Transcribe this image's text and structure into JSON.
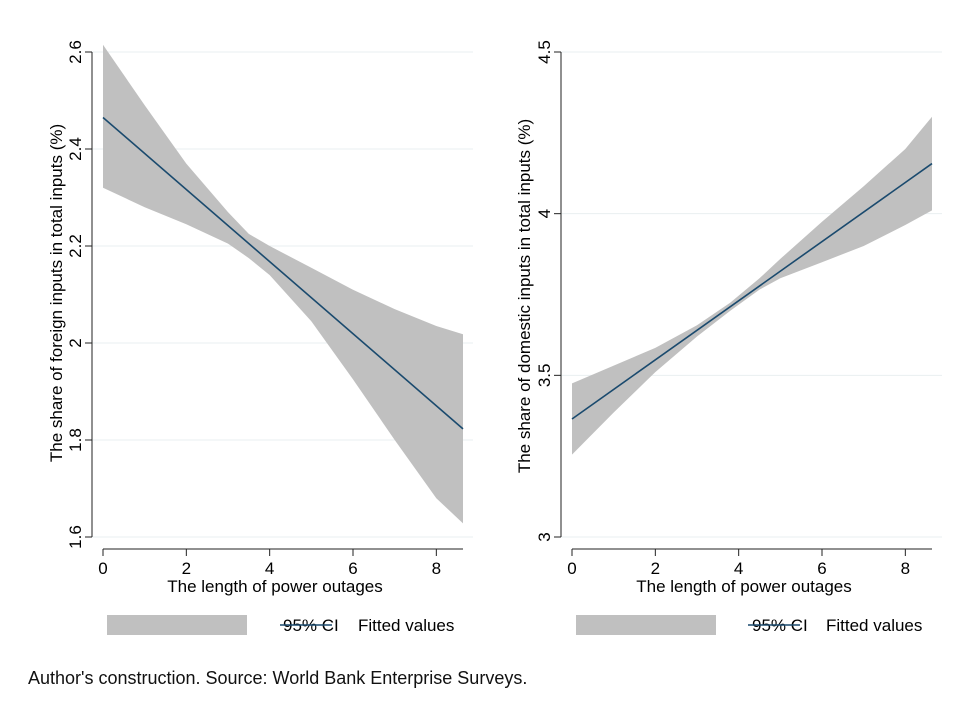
{
  "footnote": "Author's construction. Source: World Bank Enterprise Surveys.",
  "colors": {
    "ci_band": "#c0c0c0",
    "fit_line": "#1a4a6e",
    "grid": "#e9eff1",
    "axis": "#222222"
  },
  "chart_data": [
    {
      "type": "line",
      "title": "",
      "xlabel": "The length of power outages",
      "ylabel": "The share of foreign inputs in total inputs (%)",
      "xlim": [
        0,
        8.64
      ],
      "ylim": [
        1.6,
        2.6
      ],
      "xticks": [
        0,
        2,
        4,
        6,
        8
      ],
      "yticks": [
        1.6,
        1.8,
        2,
        2.2,
        2.4,
        2.6
      ],
      "ytick_labels": [
        "1.6",
        "1.8",
        "2",
        "2.2",
        "2.4",
        "2.6"
      ],
      "xtick_labels": [
        "0",
        "2",
        "4",
        "6",
        "8"
      ],
      "grid": true,
      "legend_position": "bottom",
      "legend": [
        "95% CI",
        "Fitted values"
      ],
      "series": [
        {
          "name": "Fitted values",
          "x": [
            0,
            8.64
          ],
          "y": [
            2.465,
            1.823
          ]
        },
        {
          "name": "95% CI",
          "x": [
            0,
            1,
            2,
            3,
            3.5,
            4,
            5,
            6,
            7,
            8,
            8.64
          ],
          "upper": [
            2.615,
            2.49,
            2.37,
            2.27,
            2.225,
            2.2,
            2.155,
            2.11,
            2.07,
            2.035,
            2.018
          ],
          "lower": [
            2.32,
            2.28,
            2.245,
            2.205,
            2.175,
            2.14,
            2.045,
            1.925,
            1.8,
            1.68,
            1.628
          ]
        }
      ]
    },
    {
      "type": "line",
      "title": "",
      "xlabel": "The length of power outages",
      "ylabel": "The share of domestic inputs in total inputs (%)",
      "xlim": [
        0,
        8.64
      ],
      "ylim": [
        3,
        4.5
      ],
      "xticks": [
        0,
        2,
        4,
        6,
        8
      ],
      "yticks": [
        3,
        3.5,
        4,
        4.5
      ],
      "ytick_labels": [
        "3",
        "3.5",
        "4",
        "4.5"
      ],
      "xtick_labels": [
        "0",
        "2",
        "4",
        "6",
        "8"
      ],
      "grid": true,
      "legend_position": "bottom",
      "legend": [
        "95% CI",
        "Fitted values"
      ],
      "series": [
        {
          "name": "Fitted values",
          "x": [
            0,
            8.64
          ],
          "y": [
            3.365,
            4.155
          ]
        },
        {
          "name": "95% CI",
          "x": [
            0,
            1,
            2,
            3,
            3.8,
            4.5,
            5,
            6,
            7,
            8,
            8.64
          ],
          "upper": [
            3.475,
            3.53,
            3.585,
            3.655,
            3.725,
            3.8,
            3.86,
            3.975,
            4.085,
            4.2,
            4.3
          ],
          "lower": [
            3.255,
            3.385,
            3.51,
            3.62,
            3.7,
            3.765,
            3.8,
            3.85,
            3.9,
            3.965,
            4.01
          ]
        }
      ]
    }
  ]
}
